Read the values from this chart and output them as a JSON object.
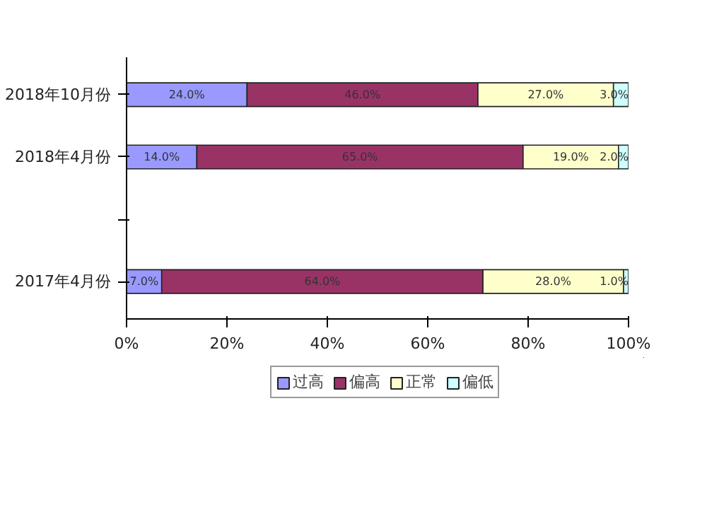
{
  "chart_data": {
    "type": "bar",
    "orientation": "horizontal",
    "stacked": true,
    "categories": [
      "2018年10月份",
      "2018年4月份",
      null,
      "2017年4月份"
    ],
    "series": [
      {
        "name": "过高",
        "color": "#9999ff",
        "values": [
          24,
          14,
          null,
          7
        ],
        "value_labels": [
          "24.0%",
          "14.0%",
          null,
          "7.0%"
        ]
      },
      {
        "name": "偏高",
        "color": "#993366",
        "values": [
          46,
          65,
          null,
          64
        ],
        "value_labels": [
          "46.0%",
          "65.0%",
          null,
          "64.0%"
        ]
      },
      {
        "name": "正常",
        "color": "#ffffcc",
        "values": [
          27,
          19,
          null,
          28
        ],
        "value_labels": [
          "27.0%",
          "19.0%",
          null,
          "28.0%"
        ]
      },
      {
        "name": "偏低",
        "color": "#ccffff",
        "values": [
          3,
          2,
          null,
          1
        ],
        "value_labels": [
          "3.0%",
          "2.0%",
          null,
          "1.0%"
        ]
      }
    ],
    "xlim": [
      0,
      100
    ],
    "xticks": [
      {
        "value": 0,
        "label": "0%"
      },
      {
        "value": 20,
        "label": "20%"
      },
      {
        "value": 40,
        "label": "40%"
      },
      {
        "value": 60,
        "label": "60%"
      },
      {
        "value": 80,
        "label": "80%"
      },
      {
        "value": 100,
        "label": "100%"
      }
    ],
    "legend": "bottom",
    "grid": false
  }
}
